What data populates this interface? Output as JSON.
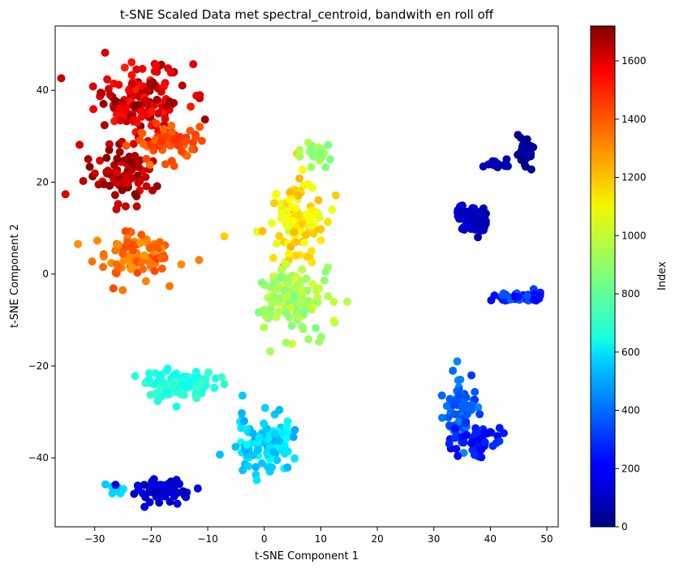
{
  "chart_data": {
    "type": "scatter",
    "title": "t-SNE Scaled Data met spectral_centroid, bandwith en roll off",
    "xlabel": "t-SNE Component 1",
    "ylabel": "t-SNE Component 2",
    "xlim": [
      -37,
      52
    ],
    "ylim": [
      -55,
      54
    ],
    "xticks": [
      -30,
      -20,
      -10,
      0,
      10,
      20,
      30,
      40,
      50
    ],
    "yticks": [
      -40,
      -20,
      0,
      20,
      40
    ],
    "grid": false,
    "legend": "none",
    "colorbar": {
      "label": "Index",
      "colormap": "jet",
      "range": [
        0,
        1720
      ],
      "ticks": [
        0,
        200,
        400,
        600,
        800,
        1000,
        1200,
        1400,
        1600
      ]
    },
    "clusters": [
      {
        "x": -22,
        "y": 38,
        "spread_x": 8,
        "spread_y": 8,
        "index_range": [
          1450,
          1720
        ],
        "count": 150
      },
      {
        "x": -25,
        "y": 22,
        "spread_x": 6,
        "spread_y": 6,
        "index_range": [
          1550,
          1720
        ],
        "count": 80
      },
      {
        "x": -18,
        "y": 28,
        "spread_x": 6,
        "spread_y": 5,
        "index_range": [
          1300,
          1450
        ],
        "count": 60
      },
      {
        "x": -23,
        "y": 4,
        "spread_x": 7,
        "spread_y": 5,
        "index_range": [
          1250,
          1400
        ],
        "count": 90
      },
      {
        "x": 5,
        "y": 12,
        "spread_x": 6,
        "spread_y": 9,
        "index_range": [
          1000,
          1200
        ],
        "count": 110
      },
      {
        "x": 5,
        "y": -5,
        "spread_x": 7,
        "spread_y": 7,
        "index_range": [
          850,
          1000
        ],
        "count": 120
      },
      {
        "x": 9,
        "y": 26,
        "spread_x": 3,
        "spread_y": 3,
        "index_range": [
          850,
          950
        ],
        "count": 25
      },
      {
        "x": -15,
        "y": -24,
        "spread_x": 7,
        "spread_y": 3,
        "index_range": [
          650,
          750
        ],
        "count": 90
      },
      {
        "x": 0,
        "y": -37,
        "spread_x": 5,
        "spread_y": 6,
        "index_range": [
          500,
          650
        ],
        "count": 110
      },
      {
        "x": -26,
        "y": -47,
        "spread_x": 2,
        "spread_y": 1,
        "index_range": [
          550,
          600
        ],
        "count": 20
      },
      {
        "x": -18,
        "y": -47,
        "spread_x": 5,
        "spread_y": 2.5,
        "index_range": [
          100,
          180
        ],
        "count": 70
      },
      {
        "x": 35,
        "y": -30,
        "spread_x": 3,
        "spread_y": 8,
        "index_range": [
          300,
          450
        ],
        "count": 80
      },
      {
        "x": 38,
        "y": -36,
        "spread_x": 4,
        "spread_y": 3,
        "index_range": [
          180,
          300
        ],
        "count": 50
      },
      {
        "x": 45,
        "y": -5,
        "spread_x": 4,
        "spread_y": 1,
        "index_range": [
          200,
          380
        ],
        "count": 50
      },
      {
        "x": 37,
        "y": 12,
        "spread_x": 3,
        "spread_y": 3,
        "index_range": [
          50,
          150
        ],
        "count": 60
      },
      {
        "x": 46,
        "y": 26,
        "spread_x": 1.5,
        "spread_y": 3,
        "index_range": [
          0,
          80
        ],
        "count": 40
      },
      {
        "x": 41,
        "y": 24,
        "spread_x": 1.5,
        "spread_y": 1,
        "index_range": [
          60,
          120
        ],
        "count": 15
      }
    ]
  }
}
